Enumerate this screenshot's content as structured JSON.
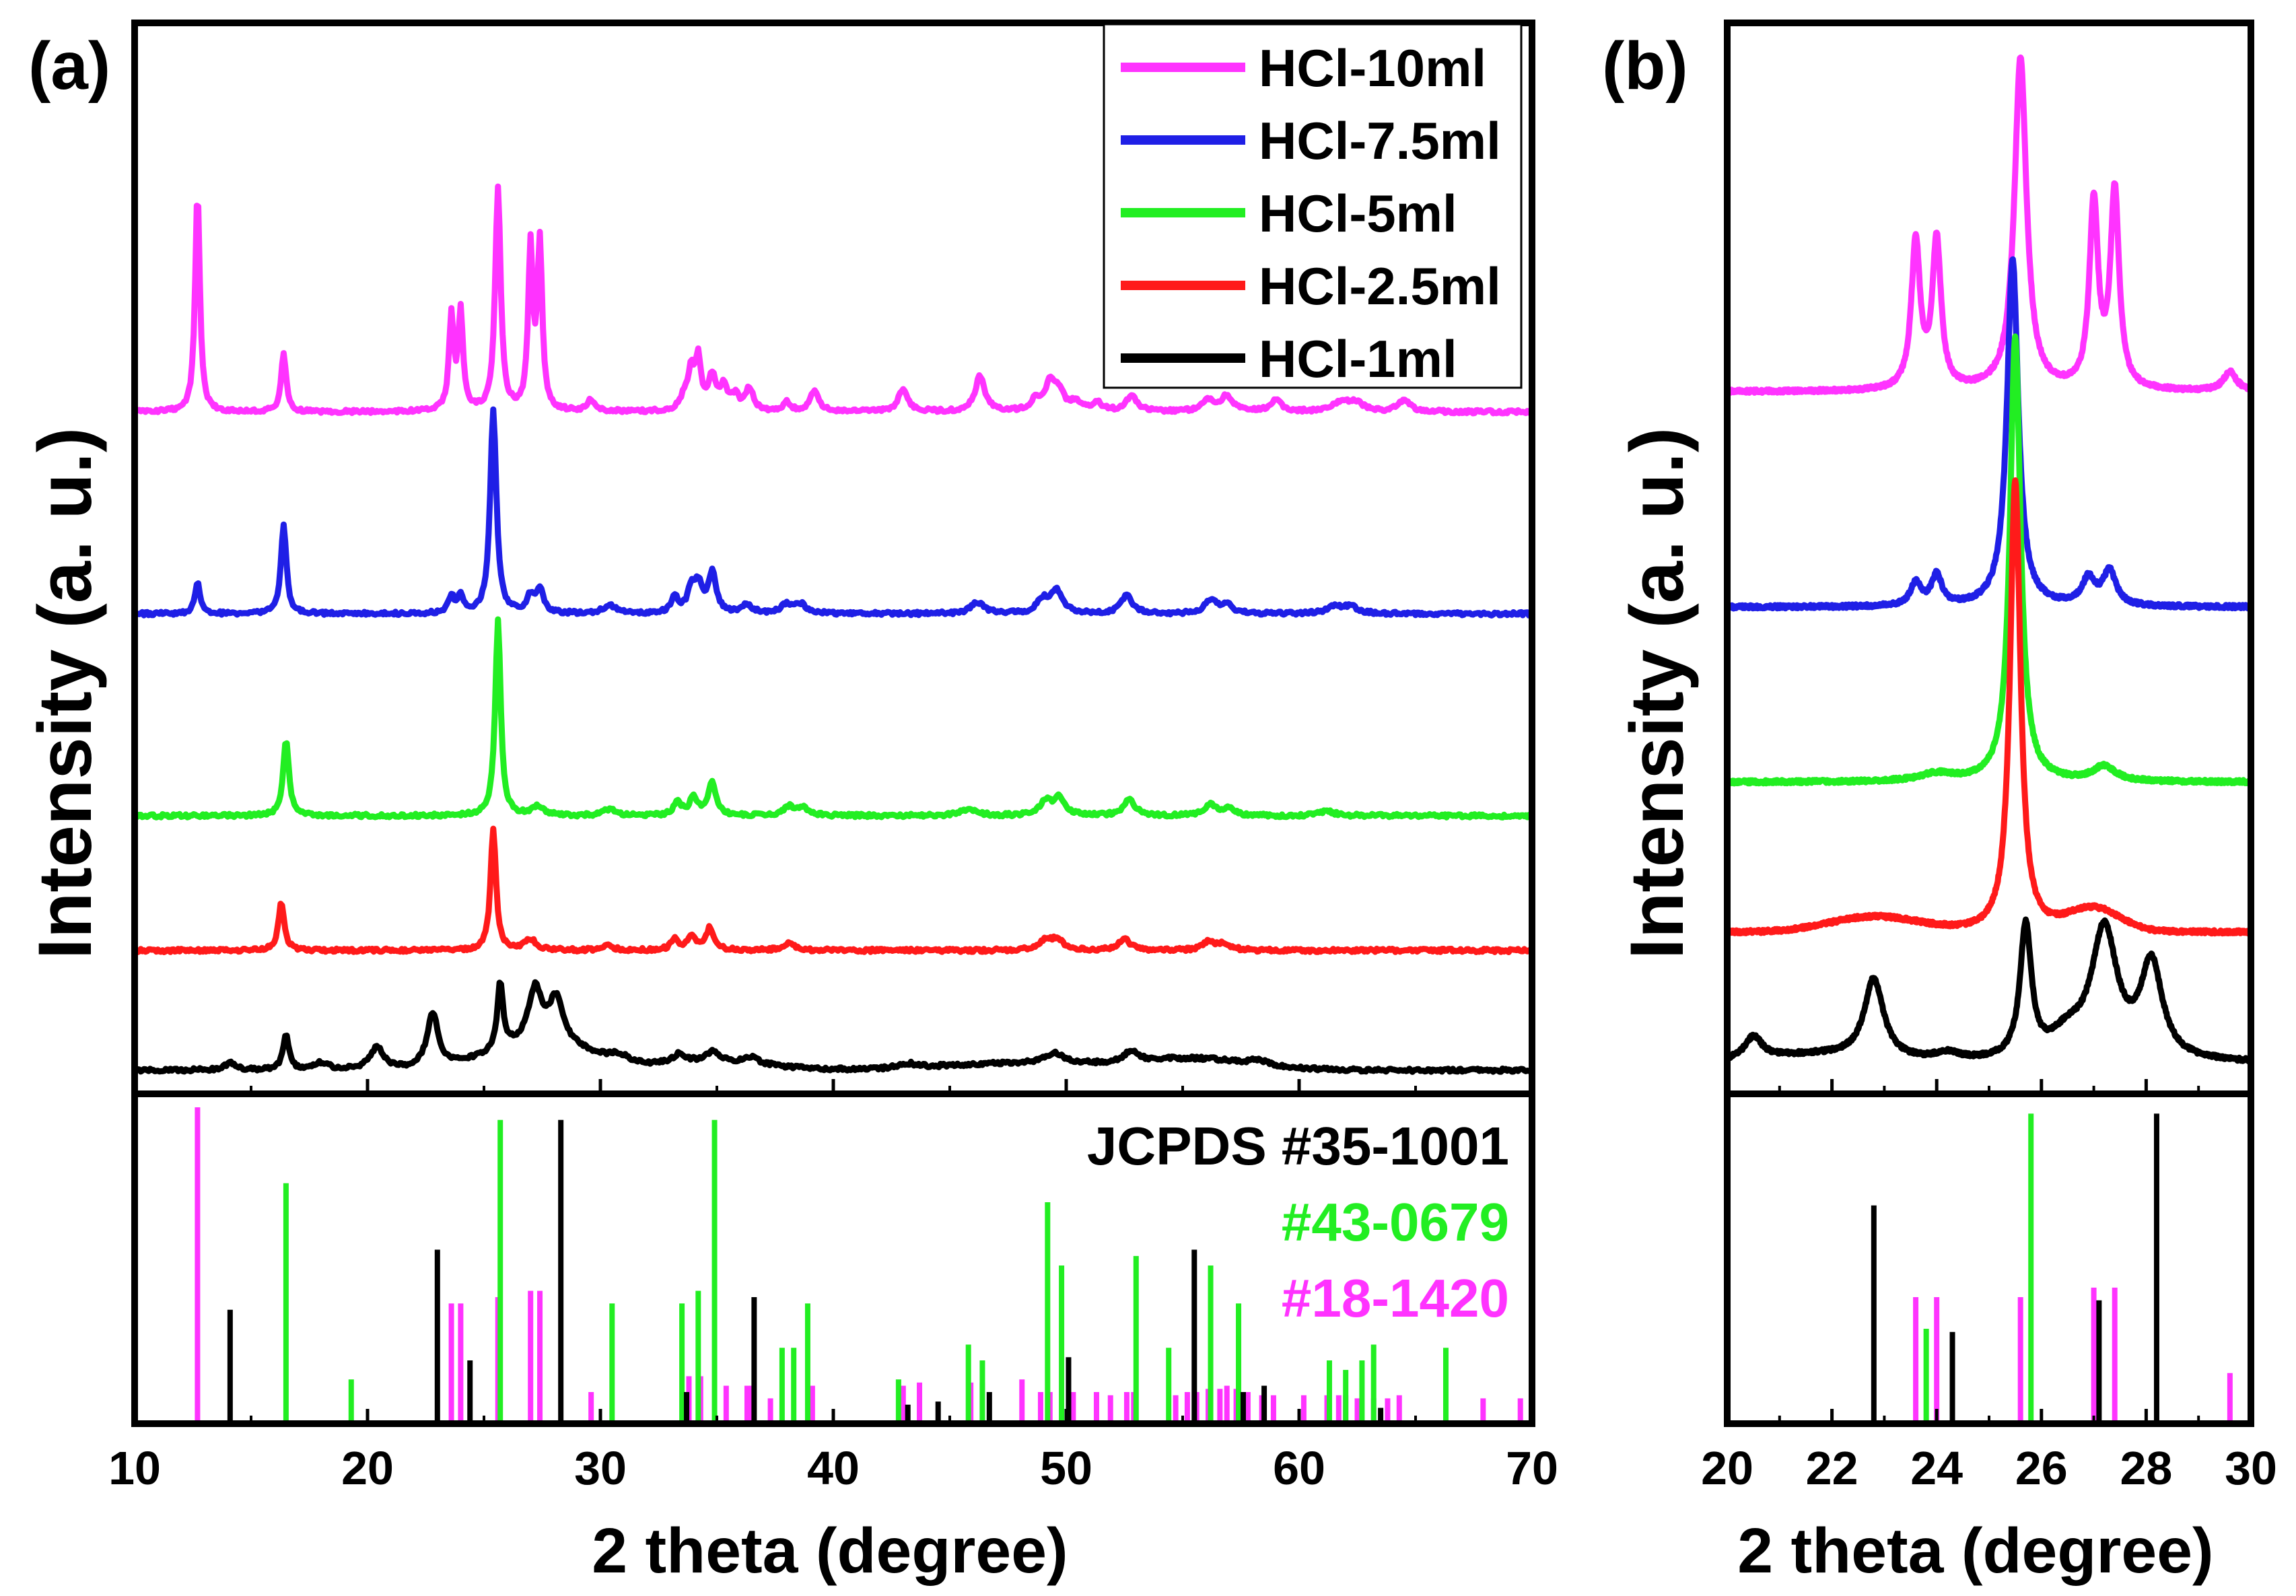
{
  "colors": {
    "HCl-10ml": "#ff33ff",
    "HCl-7.5ml": "#1f1fe6",
    "HCl-5ml": "#22ee22",
    "HCl-2.5ml": "#ff1a1a",
    "HCl-1ml": "#000000"
  },
  "chart_data": [
    {
      "panel": "(a)",
      "type": "line",
      "xlabel": "2 theta (degree)",
      "ylabel": "Intensity (a. u.)",
      "xlim": [
        10,
        70
      ],
      "xticks": [
        "10",
        "20",
        "30",
        "40",
        "50",
        "60",
        "70"
      ],
      "grid": false,
      "legend_position": "top-right",
      "legend": [
        "HCl-10ml",
        "HCl-7.5ml",
        "HCl-5ml",
        "HCl-2.5ml",
        "HCl-1ml"
      ],
      "series": [
        {
          "name": "HCl-10ml",
          "baseline": 0.0,
          "broad": [],
          "peaks": [
            [
              12.7,
              1.0,
              0.12
            ],
            [
              16.4,
              0.26,
              0.13
            ],
            [
              23.6,
              0.42,
              0.12
            ],
            [
              24.0,
              0.44,
              0.12
            ],
            [
              25.6,
              1.0,
              0.14
            ],
            [
              27.0,
              0.72,
              0.12
            ],
            [
              27.4,
              0.75,
              0.12
            ],
            [
              29.6,
              0.05,
              0.2
            ],
            [
              33.6,
              0.06,
              0.2
            ],
            [
              33.9,
              0.16,
              0.15
            ],
            [
              34.2,
              0.22,
              0.15
            ],
            [
              34.8,
              0.15,
              0.2
            ],
            [
              35.3,
              0.1,
              0.2
            ],
            [
              35.8,
              0.06,
              0.2
            ],
            [
              36.4,
              0.1,
              0.2
            ],
            [
              38.0,
              0.04,
              0.2
            ],
            [
              39.2,
              0.1,
              0.2
            ],
            [
              43.0,
              0.1,
              0.25
            ],
            [
              46.3,
              0.16,
              0.25
            ],
            [
              48.7,
              0.05,
              0.25
            ],
            [
              49.3,
              0.12,
              0.25
            ],
            [
              49.7,
              0.08,
              0.25
            ],
            [
              50.4,
              0.04,
              0.25
            ],
            [
              51.3,
              0.04,
              0.25
            ],
            [
              52.8,
              0.07,
              0.3
            ],
            [
              56.1,
              0.05,
              0.3
            ],
            [
              56.9,
              0.07,
              0.3
            ],
            [
              59.0,
              0.05,
              0.3
            ],
            [
              61.8,
              0.04,
              0.4
            ],
            [
              62.4,
              0.04,
              0.4
            ],
            [
              64.5,
              0.05,
              0.3
            ]
          ]
        },
        {
          "name": "HCl-7.5ml",
          "baseline": 0.0,
          "broad": [],
          "peaks": [
            [
              12.7,
              0.14,
              0.14
            ],
            [
              16.4,
              0.4,
              0.14
            ],
            [
              23.6,
              0.07,
              0.15
            ],
            [
              24.0,
              0.08,
              0.15
            ],
            [
              25.4,
              0.92,
              0.16
            ],
            [
              27.0,
              0.07,
              0.2
            ],
            [
              27.4,
              0.1,
              0.2
            ],
            [
              30.4,
              0.04,
              0.3
            ],
            [
              33.2,
              0.07,
              0.2
            ],
            [
              33.9,
              0.1,
              0.18
            ],
            [
              34.2,
              0.12,
              0.2
            ],
            [
              34.8,
              0.18,
              0.2
            ],
            [
              36.3,
              0.04,
              0.25
            ],
            [
              38.0,
              0.04,
              0.3
            ],
            [
              38.6,
              0.04,
              0.3
            ],
            [
              46.2,
              0.05,
              0.35
            ],
            [
              49.0,
              0.06,
              0.3
            ],
            [
              49.6,
              0.1,
              0.3
            ],
            [
              52.6,
              0.08,
              0.3
            ],
            [
              56.2,
              0.06,
              0.3
            ],
            [
              56.9,
              0.04,
              0.3
            ],
            [
              61.5,
              0.03,
              0.4
            ],
            [
              62.2,
              0.03,
              0.4
            ]
          ]
        },
        {
          "name": "HCl-5ml",
          "baseline": 0.0,
          "broad": [],
          "peaks": [
            [
              16.5,
              0.34,
              0.15
            ],
            [
              25.6,
              0.88,
              0.14
            ],
            [
              27.3,
              0.04,
              0.3
            ],
            [
              30.4,
              0.03,
              0.3
            ],
            [
              33.3,
              0.06,
              0.2
            ],
            [
              34.0,
              0.08,
              0.2
            ],
            [
              34.8,
              0.15,
              0.2
            ],
            [
              38.1,
              0.04,
              0.3
            ],
            [
              38.7,
              0.03,
              0.3
            ],
            [
              45.8,
              0.03,
              0.4
            ],
            [
              49.1,
              0.06,
              0.3
            ],
            [
              49.7,
              0.08,
              0.3
            ],
            [
              52.7,
              0.07,
              0.3
            ],
            [
              56.2,
              0.05,
              0.3
            ],
            [
              57.0,
              0.03,
              0.3
            ],
            [
              61.2,
              0.02,
              0.4
            ]
          ]
        },
        {
          "name": "HCl-2.5ml",
          "baseline": 0.0,
          "broad": [],
          "peaks": [
            [
              16.3,
              0.22,
              0.15
            ],
            [
              25.4,
              0.55,
              0.14
            ],
            [
              27.0,
              0.05,
              0.3
            ],
            [
              30.3,
              0.02,
              0.3
            ],
            [
              33.2,
              0.05,
              0.2
            ],
            [
              33.9,
              0.06,
              0.2
            ],
            [
              34.7,
              0.1,
              0.2
            ],
            [
              38.1,
              0.03,
              0.3
            ],
            [
              49.1,
              0.04,
              0.3
            ],
            [
              49.6,
              0.05,
              0.3
            ],
            [
              52.5,
              0.05,
              0.3
            ],
            [
              56.1,
              0.04,
              0.3
            ],
            [
              56.8,
              0.03,
              0.3
            ]
          ]
        },
        {
          "name": "HCl-1ml",
          "baseline": 0.0,
          "broad": [
            [
              27.5,
              0.12,
              3.0
            ],
            [
              35.0,
              0.04,
              3.0
            ],
            [
              48.0,
              0.03,
              5.0
            ],
            [
              55.5,
              0.05,
              3.5
            ]
          ],
          "peaks": [
            [
              14.1,
              0.03,
              0.3
            ],
            [
              16.5,
              0.16,
              0.15
            ],
            [
              18.0,
              0.03,
              0.4
            ],
            [
              20.4,
              0.1,
              0.35
            ],
            [
              22.8,
              0.24,
              0.3
            ],
            [
              25.7,
              0.3,
              0.15
            ],
            [
              27.2,
              0.24,
              0.35
            ],
            [
              28.1,
              0.2,
              0.35
            ],
            [
              30.8,
              0.03,
              0.5
            ],
            [
              33.4,
              0.04,
              0.3
            ],
            [
              34.8,
              0.04,
              0.3
            ],
            [
              36.5,
              0.03,
              0.3
            ],
            [
              43.2,
              0.02,
              0.4
            ],
            [
              49.5,
              0.05,
              0.5
            ],
            [
              52.8,
              0.05,
              0.35
            ],
            [
              58.3,
              0.02,
              0.5
            ]
          ]
        }
      ],
      "reference_lines": [
        {
          "card": "#18-1420",
          "positions": [
            12.7,
            23.6,
            24.0,
            25.6,
            27.0,
            27.4,
            29.6,
            33.8,
            34.3,
            35.4,
            36.3,
            36.5,
            37.3,
            39.1,
            43.0,
            43.7,
            45.9,
            46.4,
            48.1,
            48.9,
            49.3,
            50.3,
            51.3,
            51.9,
            52.6,
            52.9,
            54.7,
            55.2,
            55.6,
            56.1,
            56.6,
            56.9,
            57.3,
            57.8,
            58.4,
            58.9,
            60.2,
            61.2,
            61.7,
            62.0,
            62.5,
            63.2,
            63.8,
            64.3,
            67.9,
            69.5
          ],
          "heights": [
            1.0,
            0.38,
            0.38,
            0.4,
            0.42,
            0.42,
            0.1,
            0.15,
            0.15,
            0.12,
            0.12,
            0.12,
            0.08,
            0.12,
            0.12,
            0.13,
            0.13,
            0.13,
            0.14,
            0.1,
            0.1,
            0.1,
            0.1,
            0.09,
            0.1,
            0.1,
            0.09,
            0.1,
            0.1,
            0.11,
            0.11,
            0.12,
            0.11,
            0.1,
            0.09,
            0.09,
            0.09,
            0.09,
            0.09,
            0.09,
            0.08,
            0.08,
            0.08,
            0.09,
            0.08,
            0.08
          ]
        },
        {
          "card": "#43-0679",
          "positions": [
            16.5,
            19.3,
            25.7,
            30.5,
            33.5,
            34.2,
            34.9,
            37.8,
            38.3,
            38.9,
            42.8,
            45.8,
            46.4,
            49.2,
            49.8,
            53.0,
            54.4,
            56.2,
            57.4,
            61.3,
            62.0,
            62.7,
            63.2,
            66.3
          ],
          "heights": [
            0.76,
            0.14,
            0.96,
            0.38,
            0.38,
            0.42,
            0.96,
            0.24,
            0.24,
            0.38,
            0.14,
            0.25,
            0.2,
            0.7,
            0.5,
            0.53,
            0.24,
            0.5,
            0.38,
            0.2,
            0.17,
            0.2,
            0.25,
            0.24
          ]
        },
        {
          "card": "JCPDS #35-1001",
          "positions": [
            14.1,
            23.0,
            24.4,
            28.3,
            33.7,
            36.6,
            43.2,
            44.5,
            46.7,
            50.1,
            55.5,
            57.6,
            58.5,
            63.5
          ],
          "heights": [
            0.36,
            0.55,
            0.2,
            0.96,
            0.1,
            0.4,
            0.06,
            0.07,
            0.1,
            0.21,
            0.55,
            0.1,
            0.12,
            0.05
          ]
        }
      ],
      "reference_labels": [
        "JCPDS #35-1001",
        "#43-0679",
        "#18-1420"
      ]
    },
    {
      "panel": "(b)",
      "type": "line",
      "xlabel": "2 theta (degree)",
      "ylabel": "Intensity (a. u.)",
      "xlim": [
        20,
        30
      ],
      "xticks": [
        "20",
        "22",
        "24",
        "26",
        "28",
        "30"
      ],
      "grid": false,
      "series": [
        {
          "name": "HCl-10ml",
          "broad": [],
          "peaks": [
            [
              23.6,
              0.39,
              0.1
            ],
            [
              24.0,
              0.39,
              0.1
            ],
            [
              25.6,
              0.88,
              0.14
            ],
            [
              27.0,
              0.49,
              0.1
            ],
            [
              27.4,
              0.52,
              0.1
            ],
            [
              29.6,
              0.05,
              0.15
            ]
          ]
        },
        {
          "name": "HCl-7.5ml",
          "broad": [],
          "peaks": [
            [
              23.6,
              0.06,
              0.12
            ],
            [
              24.0,
              0.08,
              0.12
            ],
            [
              25.45,
              0.92,
              0.13
            ],
            [
              26.9,
              0.07,
              0.15
            ],
            [
              27.3,
              0.09,
              0.15
            ]
          ]
        },
        {
          "name": "HCl-5ml",
          "broad": [],
          "peaks": [
            [
              25.5,
              1.18,
              0.12
            ],
            [
              27.2,
              0.04,
              0.25
            ],
            [
              24.0,
              0.02,
              0.4
            ]
          ]
        },
        {
          "name": "HCl-2.5ml",
          "broad": [
            [
              22.8,
              0.04,
              1.2
            ],
            [
              27.0,
              0.06,
              0.7
            ]
          ],
          "peaks": [
            [
              25.5,
              1.2,
              0.12
            ]
          ]
        },
        {
          "name": "HCl-1ml",
          "broad": [
            [
              21.7,
              0.02,
              1.5
            ]
          ],
          "peaks": [
            [
              20.5,
              0.06,
              0.2
            ],
            [
              22.8,
              0.21,
              0.22
            ],
            [
              24.2,
              0.02,
              0.3
            ],
            [
              25.7,
              0.35,
              0.13
            ],
            [
              27.2,
              0.34,
              0.3
            ],
            [
              28.1,
              0.25,
              0.25
            ],
            [
              26.5,
              0.06,
              0.4
            ]
          ]
        }
      ],
      "reference_lines": [
        {
          "card": "#18-1420",
          "positions": [
            23.6,
            24.0,
            25.6,
            27.0,
            27.4,
            29.6
          ],
          "heights": [
            0.4,
            0.4,
            0.4,
            0.43,
            0.43,
            0.16
          ]
        },
        {
          "card": "#43-0679",
          "positions": [
            23.8,
            25.8
          ],
          "heights": [
            0.3,
            0.98
          ]
        },
        {
          "card": "JCPDS #35-1001",
          "positions": [
            22.8,
            24.3,
            27.1,
            28.2
          ],
          "heights": [
            0.69,
            0.29,
            0.39,
            0.98
          ]
        }
      ]
    }
  ]
}
